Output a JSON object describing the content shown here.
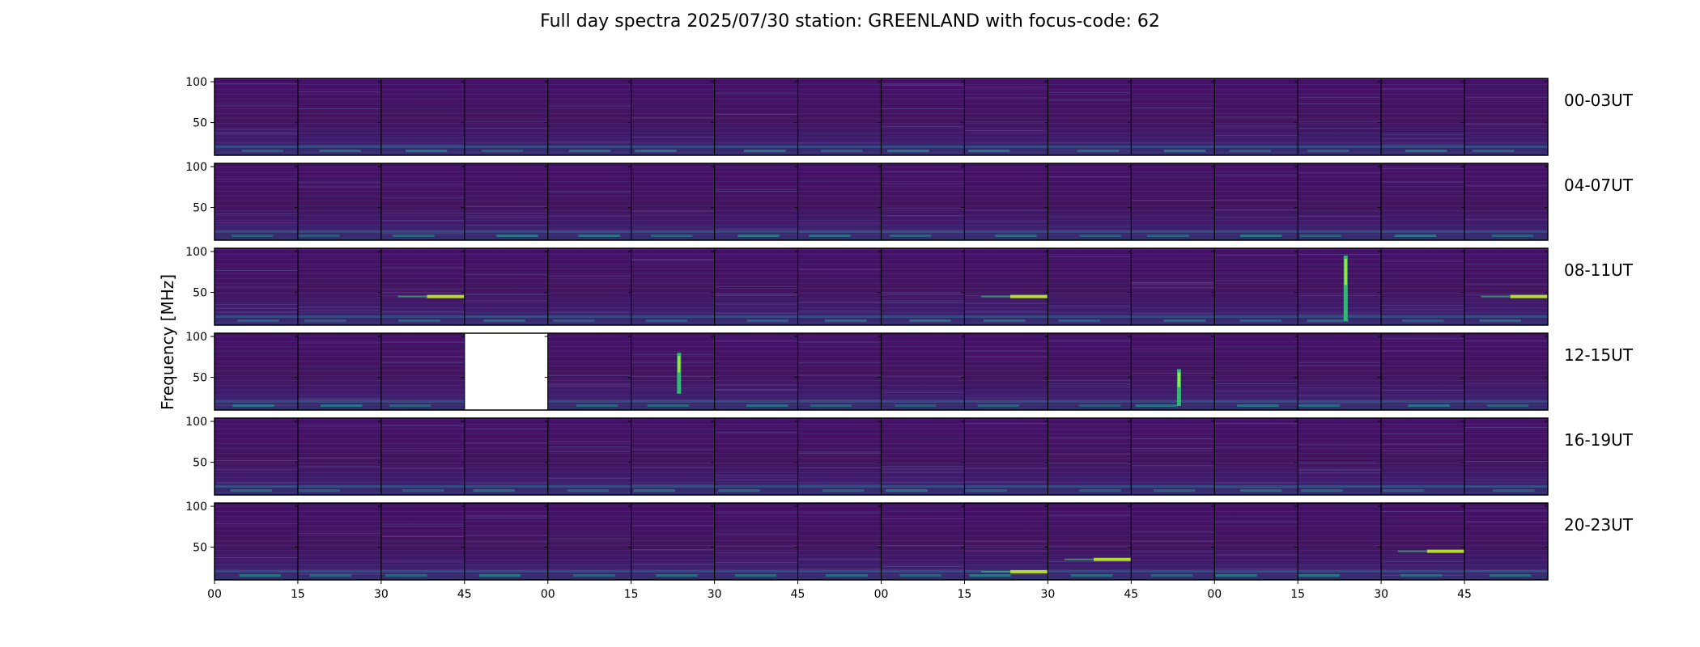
{
  "figure": {
    "title": "Full day spectra 2025/07/30 station: GREENLAND with focus-code: 62",
    "ylabel": "Frequency [MHz]"
  },
  "colors": {
    "background_low": "#440c55",
    "background_mid": "#472c7a",
    "line_green": "#35b779",
    "line_bright": "#b5de2b",
    "line_teal": "#21918c",
    "missing": "#ffffff",
    "frame": "#000000"
  },
  "chart_data": {
    "type": "heatmap",
    "title": "Full day spectra 2025/07/30 station: GREENLAND with focus-code: 62",
    "ylabel": "Frequency [MHz]",
    "ylim": [
      10,
      104
    ],
    "yticks": [
      50,
      100
    ],
    "x_tick_labels": [
      "00",
      "15",
      "30",
      "45",
      "00",
      "15",
      "30",
      "45",
      "00",
      "15",
      "30",
      "45",
      "00",
      "15",
      "30",
      "45"
    ],
    "panels_per_row": 16,
    "minutes_per_panel": 15,
    "rows": [
      {
        "label": "00-03UT",
        "missing_panels": [],
        "bright_features": []
      },
      {
        "label": "04-07UT",
        "missing_panels": [],
        "bright_features": []
      },
      {
        "label": "08-11UT",
        "missing_panels": [],
        "bright_features": [
          {
            "panel": 2,
            "freq": 45,
            "kind": "band"
          },
          {
            "panel": 9,
            "freq": 45,
            "kind": "band"
          },
          {
            "panel": 13,
            "freq_range": [
              15,
              95
            ],
            "kind": "burst"
          },
          {
            "panel": 15,
            "freq": 45,
            "kind": "band"
          }
        ]
      },
      {
        "label": "12-15UT",
        "missing_panels": [
          3
        ],
        "bright_features": [
          {
            "panel": 5,
            "freq_range": [
              30,
              80
            ],
            "kind": "burst"
          },
          {
            "panel": 11,
            "freq_range": [
              15,
              60
            ],
            "kind": "burst"
          }
        ]
      },
      {
        "label": "16-19UT",
        "missing_panels": [],
        "bright_features": []
      },
      {
        "label": "20-23UT",
        "missing_panels": [],
        "bright_features": [
          {
            "panel": 9,
            "freq": 20,
            "kind": "band"
          },
          {
            "panel": 10,
            "freq": 35,
            "kind": "band"
          },
          {
            "panel": 14,
            "freq": 45,
            "kind": "band"
          }
        ]
      }
    ]
  }
}
